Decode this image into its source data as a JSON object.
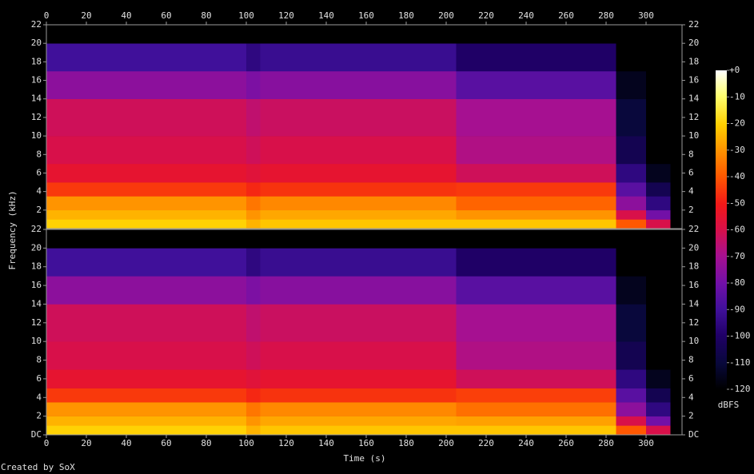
{
  "chart_data": {
    "type": "spectrogram",
    "xlabel": "Time (s)",
    "ylabel": "Frequency (kHz)",
    "footer": "Created by SoX",
    "xlim": [
      0,
      318
    ],
    "xticks": [
      0,
      20,
      40,
      60,
      80,
      100,
      120,
      140,
      160,
      180,
      200,
      220,
      240,
      260,
      280,
      300
    ],
    "time_edges": [
      0,
      100,
      107,
      205,
      285,
      300,
      312
    ],
    "freq_edges": [
      0,
      1,
      2,
      3.5,
      5,
      7,
      10,
      14,
      17,
      20,
      22
    ],
    "panels": [
      {
        "ylim": [
          0,
          22
        ],
        "yticks": [
          2,
          4,
          6,
          8,
          10,
          12,
          14,
          16,
          18,
          20,
          22
        ],
        "levels": [
          [
            -20,
            -25,
            -30,
            -45,
            -55,
            -60,
            -62,
            -75,
            -90,
            -120
          ],
          [
            -25,
            -30,
            -35,
            -48,
            -57,
            -62,
            -65,
            -78,
            -95,
            -120
          ],
          [
            -22,
            -27,
            -32,
            -46,
            -55,
            -60,
            -63,
            -76,
            -92,
            -120
          ],
          [
            -22,
            -30,
            -38,
            -45,
            -62,
            -68,
            -70,
            -85,
            -100,
            -120
          ],
          [
            -40,
            -60,
            -75,
            -85,
            -95,
            -105,
            -110,
            -115,
            -120,
            -120
          ],
          [
            -60,
            -80,
            -95,
            -105,
            -115,
            -120,
            -120,
            -120,
            -120,
            -120
          ]
        ]
      },
      {
        "ylim": [
          0,
          22
        ],
        "yticks": [
          {
            "value": 0,
            "label": "DC"
          },
          2,
          4,
          6,
          8,
          10,
          12,
          14,
          16,
          18,
          20,
          22
        ],
        "levels": [
          [
            -20,
            -25,
            -30,
            -45,
            -55,
            -60,
            -62,
            -75,
            -90,
            -120
          ],
          [
            -25,
            -30,
            -35,
            -48,
            -57,
            -62,
            -65,
            -78,
            -95,
            -120
          ],
          [
            -22,
            -27,
            -32,
            -46,
            -55,
            -60,
            -63,
            -76,
            -92,
            -120
          ],
          [
            -22,
            -28,
            -36,
            -44,
            -62,
            -68,
            -70,
            -85,
            -100,
            -120
          ],
          [
            -40,
            -60,
            -75,
            -85,
            -95,
            -105,
            -110,
            -115,
            -120,
            -120
          ],
          [
            -60,
            -80,
            -95,
            -105,
            -115,
            -120,
            -120,
            -120,
            -120,
            -120
          ]
        ]
      }
    ],
    "colorbar": {
      "label": "dBFS",
      "lim": [
        -120,
        0
      ],
      "ticks": [
        {
          "value": 0,
          "label": "+0"
        },
        -10,
        -20,
        -30,
        -40,
        -50,
        -60,
        -70,
        -80,
        -90,
        -100,
        -110,
        -120
      ]
    }
  }
}
